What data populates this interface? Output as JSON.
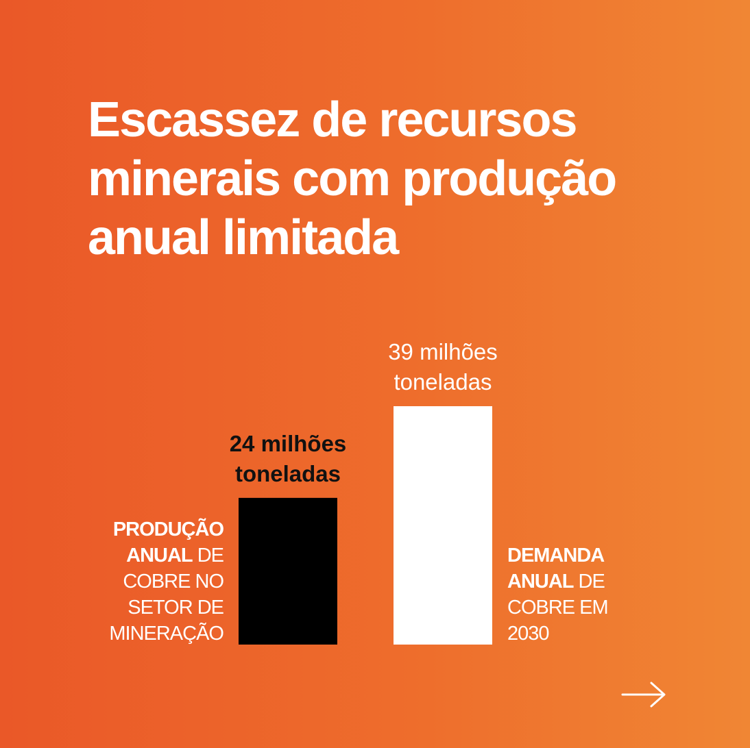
{
  "title_lines": [
    "Escassez de recursos",
    "minerais com produção",
    "anual limitada"
  ],
  "colors": {
    "background_start": "#EA5828",
    "background_end": "#F08634",
    "bar_production": "#000000",
    "bar_demand": "#FFFFFF",
    "text_light": "#FFFFFF",
    "text_dark": "#111111"
  },
  "chart_data": {
    "type": "bar",
    "categories": [
      "PRODUÇÃO ANUAL DE COBRE NO SETOR DE MINERAÇÃO",
      "DEMANDA ANUAL DE COBRE EM 2030"
    ],
    "values": [
      24,
      39
    ],
    "data_labels": [
      [
        "24 milhões",
        "toneladas"
      ],
      [
        "39 milhões",
        "toneladas"
      ]
    ],
    "unit": "milhões de toneladas",
    "grid": false,
    "legend": "none"
  },
  "labels": {
    "production": {
      "bold": "PRODUÇÃO ANUAL",
      "bold_line1": "PRODUÇÃO",
      "bold_line2": "ANUAL",
      "rest_line2": " DE",
      "line3": "COBRE NO",
      "line4": "SETOR DE",
      "line5": "MINERAÇÃO"
    },
    "demand": {
      "bold_line1": "DEMANDA",
      "bold_line2": "ANUAL",
      "rest_line2": " DE",
      "line3": "COBRE EM",
      "line4": "2030"
    }
  },
  "navigation": {
    "next_icon": "arrow-right-icon"
  }
}
